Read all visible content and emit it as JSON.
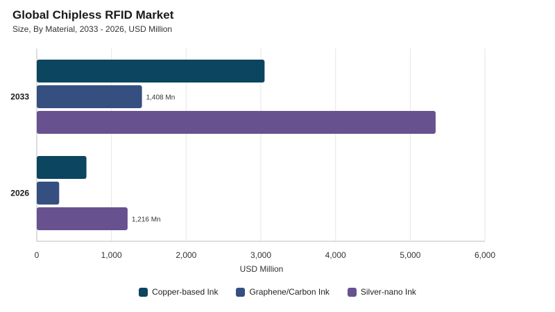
{
  "header": {
    "title": "Global Chipless RFID Market",
    "subtitle": "Size, By Material, 2033 - 2026, USD Million"
  },
  "chart_data": {
    "type": "bar",
    "orientation": "horizontal",
    "title": "Global Chipless RFID Market",
    "subtitle": "Size, By Material, 2033 - 2026, USD Million",
    "xlabel": "USD Million",
    "ylabel": "",
    "categories": [
      "2033",
      "2026"
    ],
    "xlim": [
      0,
      6000
    ],
    "x_ticks": [
      0,
      1000,
      2000,
      3000,
      4000,
      5000,
      6000
    ],
    "x_tick_labels": [
      "0",
      "1,000",
      "2,000",
      "3,000",
      "4,000",
      "5,000",
      "6,000"
    ],
    "grid": true,
    "legend_position": "bottom",
    "series": [
      {
        "name": "Copper-based Ink",
        "color": "#0b4560",
        "values": [
          3050,
          665
        ],
        "labels": [
          "",
          ""
        ]
      },
      {
        "name": "Graphene/Carbon Ink",
        "color": "#344f80",
        "values": [
          1408,
          300
        ],
        "labels": [
          "1,408 Mn",
          ""
        ]
      },
      {
        "name": "Silver-nano Ink",
        "color": "#67528f",
        "values": [
          5340,
          1216
        ],
        "labels": [
          "",
          "1,216 Mn"
        ]
      }
    ]
  }
}
